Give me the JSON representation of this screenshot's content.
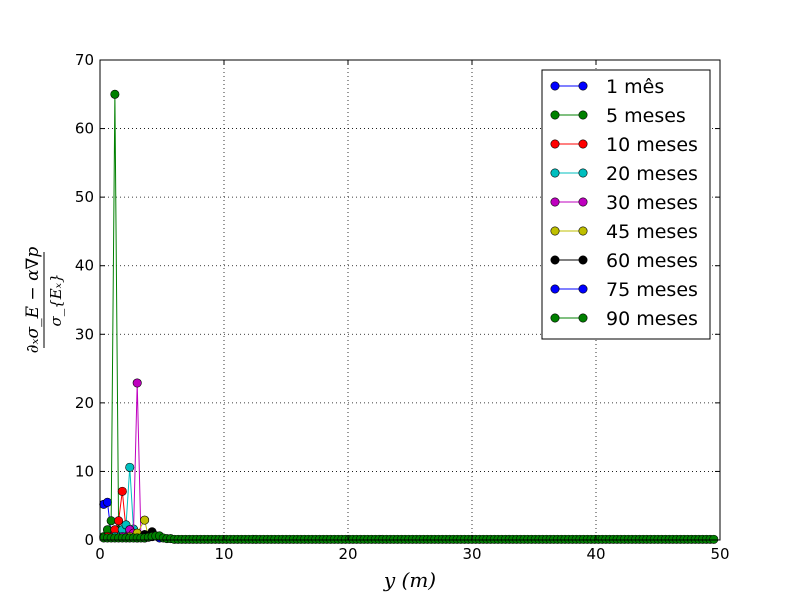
{
  "chart_data": {
    "type": "line",
    "xlabel": "y (m)",
    "ylabel": {
      "numerator": "∂ₓσ_E − α∇p",
      "denominator": "σ_{Eₓ}"
    },
    "xlim": [
      0,
      50
    ],
    "ylim": [
      0,
      70
    ],
    "x_ticks": [
      0,
      10,
      20,
      30,
      40,
      50
    ],
    "y_ticks": [
      0,
      10,
      20,
      30,
      40,
      50,
      60,
      70
    ],
    "grid": true,
    "legend_position": "top-right",
    "series": [
      {
        "name": "1 mês",
        "color": "#0000ff",
        "x": [
          0.3,
          0.6,
          0.9,
          1.2
        ],
        "y": [
          5.2,
          5.5,
          1.0,
          0.5
        ]
      },
      {
        "name": "5 meses",
        "color": "#008000",
        "x": [
          0.3,
          0.6,
          0.9,
          1.2,
          1.5,
          1.8
        ],
        "y": [
          0.5,
          1.5,
          2.8,
          65.0,
          1.5,
          0.5
        ]
      },
      {
        "name": "10 meses",
        "color": "#ff0000",
        "x": [
          0.6,
          1.2,
          1.5,
          1.8,
          2.1,
          2.4
        ],
        "y": [
          0.5,
          1.5,
          2.8,
          7.1,
          1.5,
          0.5
        ]
      },
      {
        "name": "20 meses",
        "color": "#00bfbf",
        "x": [
          1.2,
          1.8,
          2.1,
          2.4,
          2.7,
          3.0
        ],
        "y": [
          0.5,
          1.5,
          2.2,
          10.6,
          1.6,
          0.5
        ]
      },
      {
        "name": "30 meses",
        "color": "#bf00bf",
        "x": [
          1.8,
          2.4,
          2.7,
          3.0,
          3.3
        ],
        "y": [
          0.5,
          1.5,
          1.0,
          22.9,
          0.5
        ]
      },
      {
        "name": "45 meses",
        "color": "#bfbf00",
        "x": [
          2.4,
          3.0,
          3.6,
          3.9
        ],
        "y": [
          0.5,
          1.0,
          2.9,
          0.5
        ]
      },
      {
        "name": "60 meses",
        "color": "#000000",
        "x": [
          3.0,
          3.6,
          4.2,
          4.8
        ],
        "y": [
          0.3,
          0.8,
          1.2,
          0.4
        ]
      },
      {
        "name": "75 meses",
        "color": "#0000ff",
        "x": [
          3.6,
          4.2,
          4.8
        ],
        "y": [
          0.3,
          0.5,
          0.3
        ]
      },
      {
        "name": "90 meses",
        "color": "#008000",
        "x": [
          0.3,
          0.6,
          0.9,
          1.2,
          1.5,
          1.8,
          2.1,
          2.4,
          2.7,
          3.0,
          3.3,
          3.6,
          3.9,
          4.2,
          4.5,
          4.8,
          5.1,
          5.4,
          5.7,
          6.0
        ],
        "y": [
          0.3,
          0.3,
          0.3,
          0.3,
          0.3,
          0.3,
          0.3,
          0.3,
          0.3,
          0.3,
          0.3,
          0.3,
          0.4,
          0.5,
          0.6,
          0.6,
          0.3,
          0.2,
          0.2,
          0.1
        ]
      }
    ]
  }
}
